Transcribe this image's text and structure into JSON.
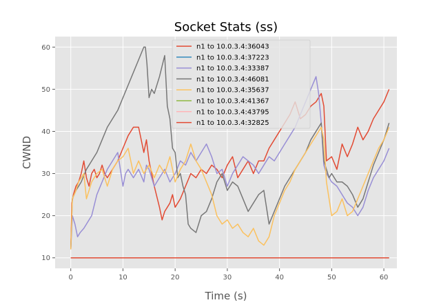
{
  "chart_data": {
    "type": "line",
    "title": "Socket Stats (ss)",
    "xlabel": "Time (s)",
    "ylabel": "CWND",
    "xlim": [
      -3,
      62.5
    ],
    "ylim": [
      7.5,
      62.5
    ],
    "xticks": [
      0,
      10,
      20,
      30,
      40,
      50,
      60
    ],
    "yticks": [
      10,
      20,
      30,
      40,
      50,
      60
    ],
    "grid": true,
    "legend_position": "top-center",
    "style": "ggplot",
    "series": [
      {
        "name": "n1 to 10.0.3.4:36043",
        "color": "#E24A33",
        "x": [
          0,
          0.2,
          0.5,
          1,
          1.5,
          2,
          2.5,
          3,
          3.5,
          4,
          4.5,
          5,
          5.5,
          6,
          6.5,
          7,
          8,
          9,
          10,
          11,
          12,
          13,
          14,
          14.5,
          15,
          15.5,
          16,
          17,
          17.5,
          18,
          18.5,
          19,
          19.5,
          20,
          21,
          22,
          23,
          24,
          25,
          26,
          27,
          28,
          29,
          30,
          31,
          32,
          33,
          34,
          35,
          36,
          37,
          38,
          39,
          40,
          41,
          42,
          43,
          44,
          45,
          46,
          47,
          48,
          48.5,
          49,
          50,
          51,
          52,
          53,
          54,
          55,
          56,
          57,
          58,
          59,
          60,
          61
        ],
        "y": [
          12,
          23,
          25,
          27,
          28,
          30,
          33,
          29,
          27,
          30,
          31,
          29,
          30,
          32,
          30,
          29,
          31,
          33,
          36,
          39,
          41,
          41,
          35,
          38,
          33,
          30,
          27,
          22,
          19,
          21,
          22,
          23,
          25,
          22,
          24,
          27,
          30,
          29,
          31,
          30,
          32,
          31,
          29,
          32,
          34,
          29,
          31,
          33,
          30,
          33,
          33,
          36,
          38,
          40,
          42,
          44,
          47,
          43,
          44,
          46,
          47,
          49,
          46,
          33,
          34,
          31,
          37,
          34,
          37,
          41,
          38,
          40,
          43,
          45,
          47,
          50
        ]
      },
      {
        "name": "n1 to 10.0.3.4:37223",
        "color": "#348ABD",
        "x": [
          0,
          61
        ],
        "y": [
          10,
          10
        ]
      },
      {
        "name": "n1 to 10.0.3.4:33387",
        "color": "#988ED5",
        "x": [
          0,
          0.3,
          0.8,
          1.3,
          1.8,
          2.5,
          3,
          4,
          5,
          6,
          7,
          8,
          9,
          10,
          10.5,
          11,
          12,
          13,
          14,
          14.5,
          15,
          16,
          17,
          18,
          19,
          20,
          21,
          22,
          23,
          24,
          25,
          26,
          27,
          28,
          29,
          30,
          31,
          32,
          33,
          34,
          35,
          36,
          37,
          38,
          39,
          40,
          41,
          42,
          43,
          44,
          45,
          46,
          47,
          47.5,
          48,
          48.5,
          49,
          50,
          51,
          52,
          53,
          54,
          55,
          56,
          57,
          58,
          59,
          60,
          61
        ],
        "y": [
          12,
          20,
          18,
          15,
          16,
          17,
          18,
          20,
          25,
          28,
          31,
          33,
          35,
          27,
          30,
          31,
          29,
          31,
          28,
          32,
          31,
          27,
          29,
          31,
          28,
          30,
          33,
          32,
          35,
          33,
          35,
          37,
          34,
          30,
          31,
          27,
          30,
          32,
          34,
          33,
          32,
          30,
          32,
          34,
          33,
          35,
          37,
          39,
          41,
          44,
          47,
          50,
          53,
          49,
          42,
          32,
          30,
          28,
          27,
          25,
          23,
          22,
          20,
          22,
          26,
          29,
          31,
          33,
          36
        ]
      },
      {
        "name": "n1 to 10.0.3.4:46081",
        "color": "#777777",
        "x": [
          0,
          0.3,
          1,
          2,
          3,
          4,
          5,
          6,
          7,
          8,
          9,
          10,
          11,
          12,
          13,
          14,
          14.3,
          14.6,
          15,
          15.5,
          16,
          17,
          18,
          18.5,
          19,
          19.5,
          20,
          20.5,
          21,
          21.5,
          22,
          22.5,
          23,
          24,
          25,
          26,
          27,
          28,
          29,
          30,
          31,
          32,
          33,
          34,
          35,
          36,
          37,
          37.5,
          38,
          39,
          40,
          41,
          42,
          43,
          44,
          45,
          46,
          47,
          48,
          48.5,
          49,
          49.5,
          50,
          51,
          52,
          53,
          54,
          55,
          56,
          57,
          58,
          59,
          60,
          61
        ],
        "y": [
          12,
          24,
          26,
          28,
          31,
          33,
          35,
          38,
          41,
          43,
          45,
          48,
          51,
          54,
          57,
          60,
          60,
          56,
          48,
          50,
          49,
          53,
          58,
          46,
          43,
          36,
          35,
          29,
          30,
          27,
          25,
          18,
          17,
          16,
          20,
          21,
          24,
          28,
          30,
          26,
          28,
          27,
          24,
          21,
          23,
          25,
          26,
          22,
          18,
          21,
          24,
          27,
          29,
          31,
          33,
          35,
          38,
          40,
          42,
          33,
          31,
          29,
          30,
          28,
          28,
          27,
          25,
          22,
          24,
          28,
          32,
          35,
          38,
          42
        ]
      },
      {
        "name": "n1 to 10.0.3.4:35637",
        "color": "#FBC15E",
        "x": [
          0,
          0.3,
          1,
          1.5,
          2,
          2.5,
          3,
          3.5,
          4,
          5,
          6,
          7,
          8,
          9,
          10,
          10.5,
          11,
          12,
          13,
          14,
          15,
          16,
          17,
          18,
          19,
          20,
          21,
          22,
          23,
          24,
          25,
          26,
          27,
          28,
          29,
          30,
          31,
          32,
          33,
          34,
          35,
          36,
          37,
          38,
          39,
          40,
          41,
          42,
          43,
          44,
          45,
          46,
          47,
          48,
          48.5,
          49,
          50,
          51,
          52,
          53,
          54,
          55,
          56,
          57,
          58,
          59,
          60,
          61
        ],
        "y": [
          12,
          24,
          26,
          28,
          29,
          30,
          24,
          26,
          28,
          30,
          31,
          27,
          31,
          33,
          34,
          35,
          36,
          30,
          33,
          30,
          32,
          29,
          32,
          30,
          34,
          28,
          31,
          33,
          37,
          33,
          31,
          28,
          25,
          20,
          18,
          19,
          17,
          18,
          16,
          15,
          17,
          14,
          13,
          15,
          20,
          23,
          26,
          28,
          31,
          33,
          35,
          37,
          39,
          41,
          38,
          28,
          20,
          21,
          24,
          20,
          21,
          24,
          27,
          30,
          33,
          36,
          38,
          41
        ]
      },
      {
        "name": "n1 to 10.0.3.4:41367",
        "color": "#8EBA42",
        "x": [
          0,
          61
        ],
        "y": [
          10,
          10
        ]
      },
      {
        "name": "n1 to 10.0.3.4:43795",
        "color": "#FFB5B8",
        "x": [
          0,
          61
        ],
        "y": [
          10,
          10
        ]
      },
      {
        "name": "n1 to 10.0.3.4:32825",
        "color": "#E24A33",
        "x": [
          0,
          61
        ],
        "y": [
          10,
          10
        ]
      }
    ]
  }
}
